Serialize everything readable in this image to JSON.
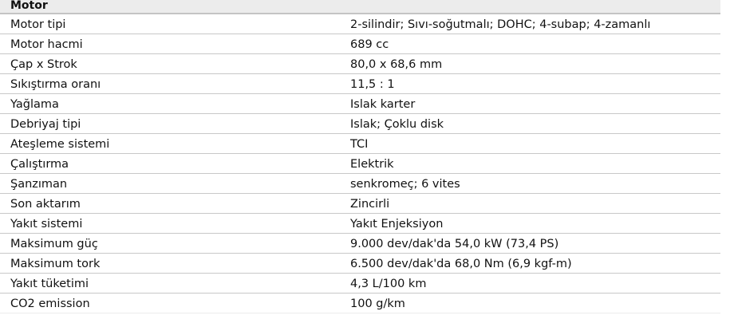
{
  "section_title": "Motor",
  "rows": [
    {
      "label": "Motor tipi",
      "value": "2-silindir; Sıvı-soğutmalı; DOHC; 4-subap; 4-zamanlı"
    },
    {
      "label": "Motor hacmi",
      "value": "689 cc"
    },
    {
      "label": "Çap x Strok",
      "value": "80,0 x 68,6 mm"
    },
    {
      "label": "Sıkıştırma oranı",
      "value": "11,5 : 1"
    },
    {
      "label": "Yağlama",
      "value": "Islak karter"
    },
    {
      "label": "Debriyaj tipi",
      "value": "Islak; Çoklu disk"
    },
    {
      "label": "Ateşleme sistemi",
      "value": "TCI"
    },
    {
      "label": "Çalıştırma",
      "value": "Elektrik"
    },
    {
      "label": "Şanzıman",
      "value": "senkromeç; 6 vites"
    },
    {
      "label": "Son aktarım",
      "value": "Zincirli"
    },
    {
      "label": "Yakıt sistemi",
      "value": "Yakıt Enjeksiyon"
    },
    {
      "label": "Maksimum güç",
      "value": "9.000 dev/dak'da 54,0 kW (73,4 PS)"
    },
    {
      "label": "Maksimum tork",
      "value": "6.500 dev/dak'da 68,0 Nm (6,9 kgf-m)"
    },
    {
      "label": "Yakıt tüketimi",
      "value": "4,3 L/100 km"
    },
    {
      "label": "CO2 emission",
      "value": "100 g/km"
    }
  ]
}
